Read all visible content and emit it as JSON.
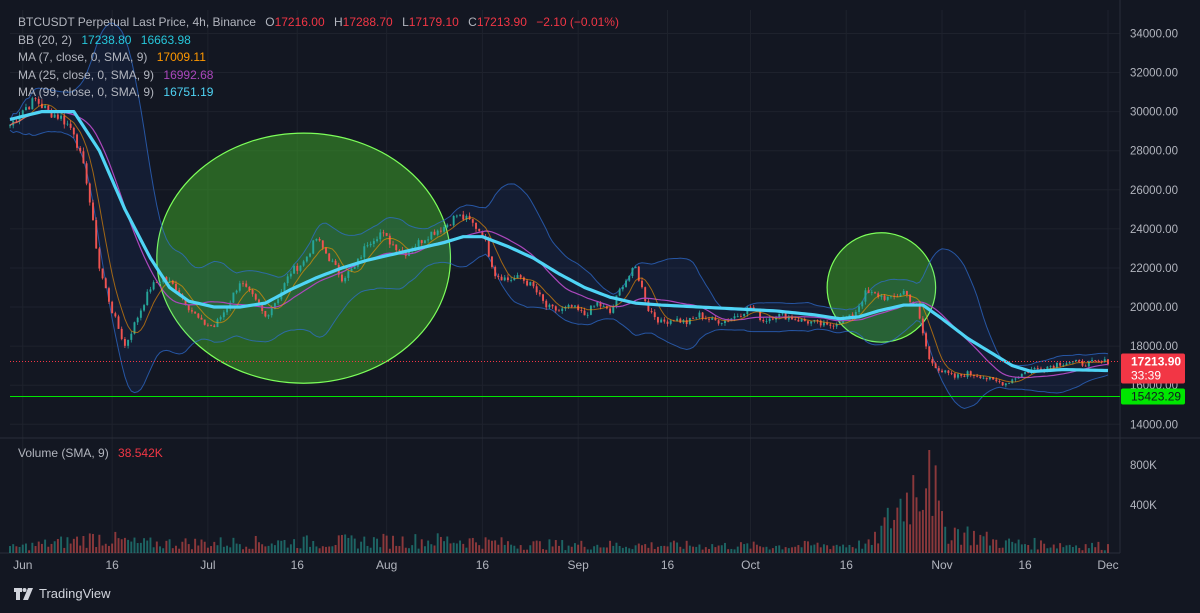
{
  "header": {
    "symbol": "BTCUSDT Perpetual Last Price, 4h, Binance",
    "open_label": "O",
    "open": "17216.00",
    "high_label": "H",
    "high": "17288.70",
    "low_label": "L",
    "low": "17179.10",
    "close_label": "C",
    "close": "17213.90",
    "change": "−2.10 (−0.01%)"
  },
  "indicators": {
    "bb": {
      "label": "BB (20, 2)",
      "upper": "17238.80",
      "lower": "16663.98"
    },
    "ma7": {
      "label": "MA (7, close, 0, SMA, 9)",
      "value": "17009.11"
    },
    "ma25": {
      "label": "MA (25, close, 0, SMA, 9)",
      "value": "16992.68"
    },
    "ma99": {
      "label": "MA (99, close, 0, SMA, 9)",
      "value": "16751.19"
    }
  },
  "volume": {
    "label": "Volume (SMA, 9)",
    "value": "38.542K"
  },
  "price_badge": {
    "price": "17213.90",
    "countdown": "33:39"
  },
  "support_badge": {
    "price": "15423.29"
  },
  "branding": {
    "name": "TradingView"
  },
  "colors": {
    "background": "#131722",
    "up": "#26a69a",
    "down": "#ef5350",
    "ma99": "#4fd4f5",
    "ma25": "#ab47bc",
    "ma7": "#ff9800",
    "bb": "#2962ff",
    "support": "#00e600",
    "circle": "#2e7d32"
  },
  "chart_data": {
    "type": "candlestick",
    "title": "BTCUSDT Perpetual Last Price, 4h, Binance",
    "y_axis_ticks": [
      "34000.00",
      "32000.00",
      "30000.00",
      "28000.00",
      "26000.00",
      "24000.00",
      "22000.00",
      "20000.00",
      "18000.00",
      "16000.00",
      "14000.00"
    ],
    "ylim": [
      13400,
      35200
    ],
    "x_axis_labels": [
      "Jun",
      "16",
      "Jul",
      "16",
      "Aug",
      "16",
      "Sep",
      "16",
      "Oct",
      "16",
      "Nov",
      "16",
      "Dec"
    ],
    "volume_ticks": [
      "800K",
      "400K"
    ],
    "current_price": 17213.9,
    "support_level": 15423.29,
    "price_path": [
      [
        0,
        29300
      ],
      [
        4,
        30100
      ],
      [
        8,
        30600
      ],
      [
        12,
        30000
      ],
      [
        16,
        29700
      ],
      [
        20,
        29000
      ],
      [
        24,
        26500
      ],
      [
        28,
        22000
      ],
      [
        32,
        19800
      ],
      [
        36,
        18000
      ],
      [
        40,
        19500
      ],
      [
        44,
        21000
      ],
      [
        48,
        21500
      ],
      [
        52,
        21000
      ],
      [
        56,
        20000
      ],
      [
        60,
        19200
      ],
      [
        64,
        19000
      ],
      [
        68,
        20000
      ],
      [
        72,
        21300
      ],
      [
        76,
        20500
      ],
      [
        80,
        19500
      ],
      [
        84,
        20500
      ],
      [
        88,
        21800
      ],
      [
        92,
        22300
      ],
      [
        96,
        23500
      ],
      [
        100,
        22500
      ],
      [
        104,
        21500
      ],
      [
        108,
        22000
      ],
      [
        112,
        23300
      ],
      [
        116,
        23800
      ],
      [
        120,
        23200
      ],
      [
        124,
        22800
      ],
      [
        128,
        23300
      ],
      [
        132,
        23800
      ],
      [
        136,
        24100
      ],
      [
        140,
        24700
      ],
      [
        144,
        24400
      ],
      [
        148,
        23800
      ],
      [
        152,
        21700
      ],
      [
        156,
        21400
      ],
      [
        160,
        21500
      ],
      [
        164,
        21000
      ],
      [
        168,
        20000
      ],
      [
        172,
        19800
      ],
      [
        176,
        20000
      ],
      [
        180,
        19600
      ],
      [
        184,
        20200
      ],
      [
        188,
        19700
      ],
      [
        192,
        21200
      ],
      [
        196,
        22000
      ],
      [
        200,
        19900
      ],
      [
        204,
        19200
      ],
      [
        208,
        19400
      ],
      [
        212,
        19200
      ],
      [
        216,
        19600
      ],
      [
        220,
        19300
      ],
      [
        224,
        19300
      ],
      [
        228,
        19600
      ],
      [
        232,
        20000
      ],
      [
        236,
        19300
      ],
      [
        240,
        19600
      ],
      [
        244,
        19500
      ],
      [
        248,
        19300
      ],
      [
        252,
        19200
      ],
      [
        256,
        19000
      ],
      [
        260,
        19300
      ],
      [
        264,
        19500
      ],
      [
        268,
        20700
      ],
      [
        272,
        20600
      ],
      [
        276,
        20400
      ],
      [
        280,
        20800
      ],
      [
        284,
        20000
      ],
      [
        288,
        17300
      ],
      [
        292,
        16700
      ],
      [
        296,
        16400
      ],
      [
        300,
        16600
      ],
      [
        304,
        16500
      ],
      [
        308,
        16200
      ],
      [
        312,
        16100
      ],
      [
        316,
        16500
      ],
      [
        320,
        16800
      ],
      [
        324,
        16900
      ],
      [
        328,
        17100
      ],
      [
        332,
        17200
      ],
      [
        336,
        17100
      ],
      [
        340,
        17150
      ],
      [
        344,
        17214
      ]
    ],
    "ma99_path": [
      [
        0,
        29600
      ],
      [
        10,
        30000
      ],
      [
        20,
        30000
      ],
      [
        28,
        28000
      ],
      [
        36,
        25000
      ],
      [
        44,
        22500
      ],
      [
        50,
        21000
      ],
      [
        56,
        20300
      ],
      [
        64,
        20000
      ],
      [
        72,
        20000
      ],
      [
        80,
        20200
      ],
      [
        88,
        20900
      ],
      [
        96,
        21500
      ],
      [
        104,
        22000
      ],
      [
        112,
        22400
      ],
      [
        120,
        22700
      ],
      [
        128,
        23000
      ],
      [
        136,
        23300
      ],
      [
        142,
        23600
      ],
      [
        148,
        23600
      ],
      [
        156,
        23100
      ],
      [
        164,
        22500
      ],
      [
        172,
        21700
      ],
      [
        180,
        21000
      ],
      [
        188,
        20500
      ],
      [
        196,
        20200
      ],
      [
        204,
        20100
      ],
      [
        216,
        20000
      ],
      [
        228,
        19900
      ],
      [
        240,
        19800
      ],
      [
        252,
        19600
      ],
      [
        260,
        19400
      ],
      [
        266,
        19500
      ],
      [
        272,
        19800
      ],
      [
        280,
        20100
      ],
      [
        286,
        20100
      ],
      [
        292,
        19400
      ],
      [
        300,
        18400
      ],
      [
        308,
        17600
      ],
      [
        314,
        17000
      ],
      [
        320,
        16700
      ],
      [
        330,
        16800
      ],
      [
        344,
        16750
      ]
    ],
    "volume_profile": [
      [
        0,
        60
      ],
      [
        20,
        140
      ],
      [
        28,
        180
      ],
      [
        40,
        110
      ],
      [
        70,
        120
      ],
      [
        100,
        130
      ],
      [
        140,
        150
      ],
      [
        160,
        100
      ],
      [
        200,
        90
      ],
      [
        240,
        80
      ],
      [
        270,
        100
      ],
      [
        288,
        1020
      ],
      [
        292,
        300
      ],
      [
        310,
        120
      ],
      [
        344,
        80
      ]
    ],
    "highlight_circles": [
      {
        "cx_index": 92,
        "cy_price": 22500,
        "rx_days": 46,
        "ry_price": 6400
      },
      {
        "cx_index": 273,
        "cy_price": 21000,
        "rx_days": 17,
        "ry_price": 2800
      }
    ]
  }
}
